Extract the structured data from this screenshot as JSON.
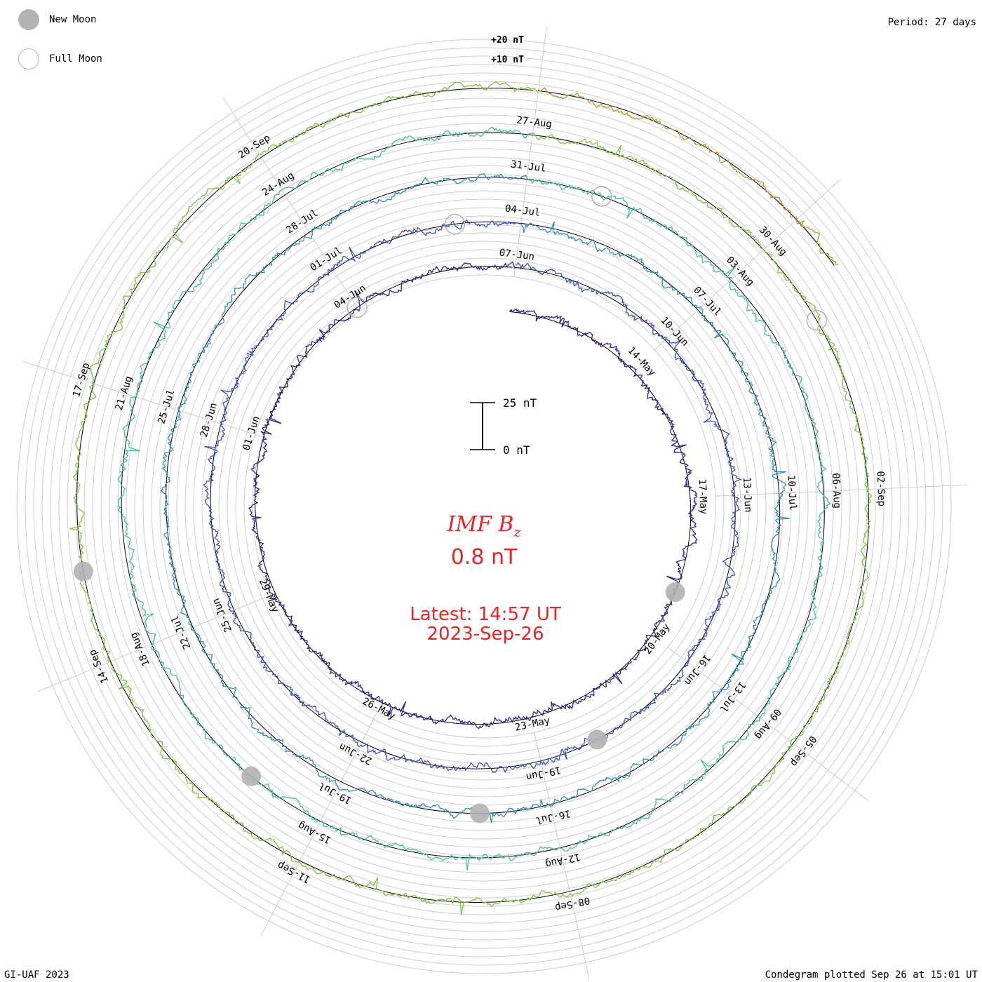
{
  "header": {
    "period": "Period: 27 days",
    "legend_new_moon": "New Moon",
    "legend_full_moon": "Full Moon"
  },
  "footer": {
    "credit": "GI-UAF 2023",
    "plotted": "Condegram plotted Sep 26 at 15:01 UT"
  },
  "center": {
    "title": "IMF B",
    "title_sub": "z",
    "value": "0.8 nT",
    "latest": "Latest: 14:57 UT",
    "date": "2023-Sep-26"
  },
  "scale_bar": {
    "top_label": "25 nT",
    "bottom_label": "0 nT"
  },
  "reference_labels": [
    "+20 nT",
    "+10 nT"
  ],
  "colors": {
    "grid": "#cccccc",
    "center_text": "#ee2222",
    "moon": "#b3b3b3",
    "tracks": [
      "#1a0f3a",
      "#2e1f8f",
      "#3a4fc4",
      "#2f8fb5",
      "#3fbfa5",
      "#7fc23a",
      "#b89a20",
      "#c8661a",
      "#c03010"
    ]
  },
  "chart_data": {
    "type": "line",
    "title": "IMF Bz",
    "period_days": 27,
    "units": "nT",
    "rotations": [
      {
        "start": "2023-05-11",
        "end": "2023-05-14",
        "date_labels": [
          "14-May",
          "17-May"
        ]
      },
      {
        "start": "2023-05-14",
        "end": "2023-06-10",
        "date_labels": [
          "17-May",
          "20-May",
          "23-May",
          "26-May",
          "29-May",
          "01-Jun",
          "04-Jun",
          "07-Jun"
        ]
      },
      {
        "start": "2023-06-10",
        "end": "2023-07-07",
        "date_labels": [
          "10-Jun",
          "13-Jun",
          "16-Jun",
          "19-Jun",
          "22-Jun",
          "25-Jun",
          "28-Jun",
          "01-Jul",
          "04-Jul"
        ]
      },
      {
        "start": "2023-07-07",
        "end": "2023-08-03",
        "date_labels": [
          "07-Jul",
          "10-Jul",
          "13-Jul",
          "16-Jul",
          "19-Jul",
          "22-Jul",
          "25-Jul",
          "28-Jul",
          "31-Jul"
        ]
      },
      {
        "start": "2023-08-03",
        "end": "2023-08-30",
        "date_labels": [
          "03-Aug",
          "06-Aug",
          "09-Aug",
          "12-Aug",
          "15-Aug",
          "18-Aug",
          "21-Aug",
          "24-Aug",
          "27-Aug"
        ]
      },
      {
        "start": "2023-08-30",
        "end": "2023-09-26",
        "date_labels": [
          "30-Aug",
          "02-Sep",
          "05-Sep",
          "08-Sep",
          "11-Sep",
          "14-Sep",
          "17-Sep",
          "20-Sep"
        ]
      }
    ],
    "moon_phases": [
      {
        "phase": "new",
        "date": "2023-05-19"
      },
      {
        "phase": "full",
        "date": "2023-06-04"
      },
      {
        "phase": "new",
        "date": "2023-06-18"
      },
      {
        "phase": "full",
        "date": "2023-07-03"
      },
      {
        "phase": "new",
        "date": "2023-07-17"
      },
      {
        "phase": "full",
        "date": "2023-08-01"
      },
      {
        "phase": "new",
        "date": "2023-08-16"
      },
      {
        "phase": "full",
        "date": "2023-08-31"
      },
      {
        "phase": "new",
        "date": "2023-09-15"
      }
    ],
    "latest_value_nT": 0.8,
    "latest_time": "14:57 UT",
    "latest_date": "2023-Sep-26"
  }
}
